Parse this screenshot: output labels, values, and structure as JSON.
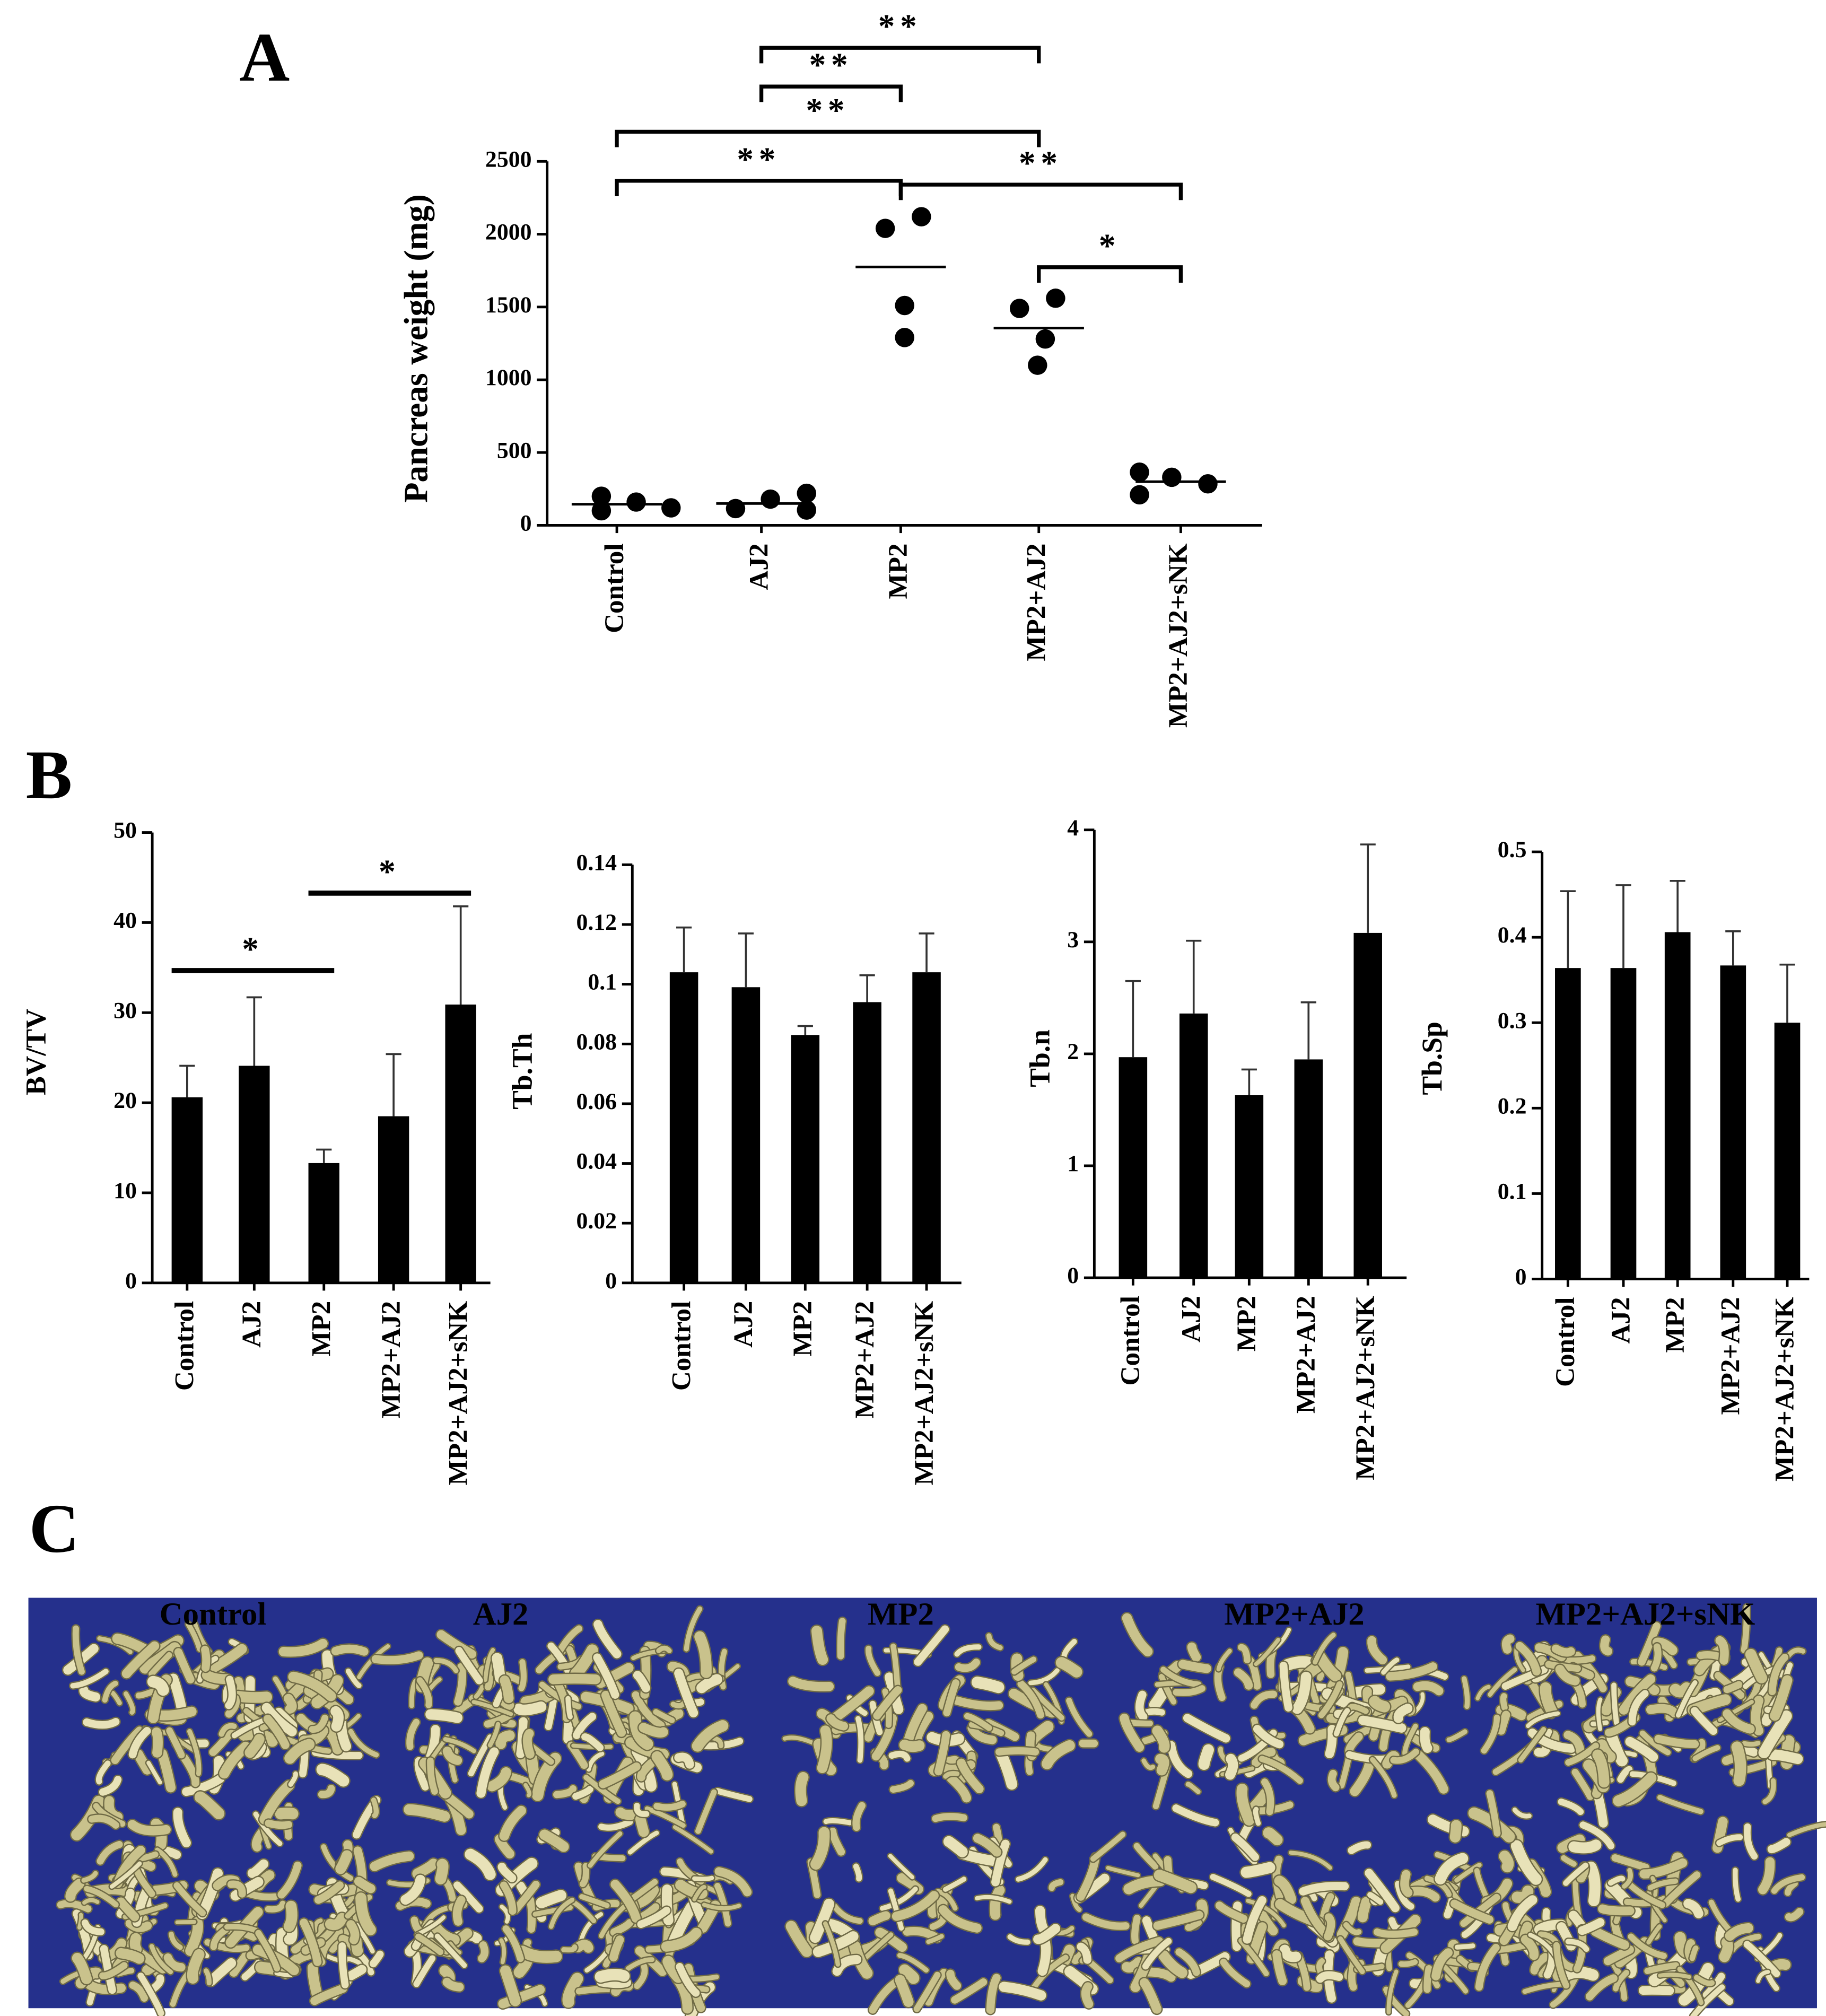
{
  "panel_labels": [
    "A",
    "B",
    "C"
  ],
  "chart_data": [
    {
      "type": "strip",
      "y_label": "Pancreas weight (mg)",
      "categories": [
        "Control",
        "AJ2",
        "MP2",
        "MP2+AJ2",
        "MP2+AJ2+sNK"
      ],
      "values": [
        [
          200,
          100,
          160,
          120
        ],
        [
          115,
          180,
          220,
          105
        ],
        [
          2040,
          2120,
          1510,
          1290
        ],
        [
          1490,
          1560,
          1280,
          1100
        ],
        [
          365,
          210,
          330,
          285
        ]
      ],
      "means": [
        145,
        150,
        1775,
        1355,
        300
      ],
      "color": "#000000",
      "ylim": [
        0,
        2500
      ],
      "yticks": [
        0,
        500,
        1000,
        1500,
        2000,
        2500
      ],
      "comparisons": [
        {
          "groups": [
            "AJ2",
            "MP2+AJ2"
          ],
          "label": "**"
        },
        {
          "groups": [
            "AJ2",
            "MP2"
          ],
          "label": "**"
        },
        {
          "groups": [
            "Control",
            "MP2+AJ2"
          ],
          "label": "**"
        },
        {
          "groups": [
            "Control",
            "MP2"
          ],
          "label": "**"
        },
        {
          "groups": [
            "MP2",
            "MP2+AJ2+sNK"
          ],
          "label": "**"
        },
        {
          "groups": [
            "MP2+AJ2",
            "MP2+AJ2+sNK"
          ],
          "label": "*"
        }
      ]
    },
    {
      "type": "bar",
      "y_label": "BV/TV",
      "categories": [
        "Control",
        "AJ2",
        "MP2",
        "MP2+AJ2",
        "MP2+AJ2+sNK"
      ],
      "values": [
        20.6,
        24.1,
        13.3,
        18.5,
        30.9
      ],
      "errors": [
        3.5,
        7.6,
        1.5,
        6.9,
        10.9
      ],
      "color": "#000000",
      "ylim": [
        0,
        50
      ],
      "yticks": [
        0,
        10,
        20,
        30,
        40,
        50
      ],
      "comparisons": [
        {
          "groups": [
            "Control",
            "MP2"
          ],
          "label": "*"
        },
        {
          "groups": [
            "MP2",
            "MP2+AJ2+sNK"
          ],
          "label": "*"
        }
      ]
    },
    {
      "type": "bar",
      "y_label": "Tb.Th",
      "categories": [
        "Control",
        "AJ2",
        "MP2",
        "MP2+AJ2",
        "MP2+AJ2+sNK"
      ],
      "values": [
        0.104,
        0.099,
        0.083,
        0.094,
        0.104
      ],
      "errors": [
        0.015,
        0.018,
        0.003,
        0.009,
        0.013
      ],
      "color": "#000000",
      "ylim": [
        0,
        0.14
      ],
      "yticks": [
        0,
        0.02,
        0.04,
        0.06,
        0.08,
        0.1,
        0.12,
        0.14
      ]
    },
    {
      "type": "bar",
      "y_label": "Tb.n",
      "categories": [
        "Control",
        "AJ2",
        "MP2",
        "MP2+AJ2",
        "MP2+AJ2+sNK"
      ],
      "values": [
        1.97,
        2.36,
        1.63,
        1.95,
        3.08
      ],
      "errors": [
        0.68,
        0.65,
        0.23,
        0.51,
        0.79
      ],
      "color": "#000000",
      "ylim": [
        0,
        4
      ],
      "yticks": [
        0,
        1,
        2,
        3,
        4
      ]
    },
    {
      "type": "bar",
      "y_label": "Tb.Sp",
      "categories": [
        "Control",
        "AJ2",
        "MP2",
        "MP2+AJ2",
        "MP2+AJ2+sNK"
      ],
      "values": [
        0.364,
        0.364,
        0.406,
        0.367,
        0.3
      ],
      "errors": [
        0.09,
        0.097,
        0.06,
        0.04,
        0.068
      ],
      "color": "#000000",
      "ylim": [
        0,
        0.5
      ],
      "yticks": [
        0,
        0.1,
        0.2,
        0.3,
        0.4,
        0.5
      ]
    }
  ],
  "image_panel": {
    "labels": [
      "Control",
      "AJ2",
      "MP2",
      "MP2+AJ2",
      "MP2+AJ2+sNK"
    ]
  }
}
